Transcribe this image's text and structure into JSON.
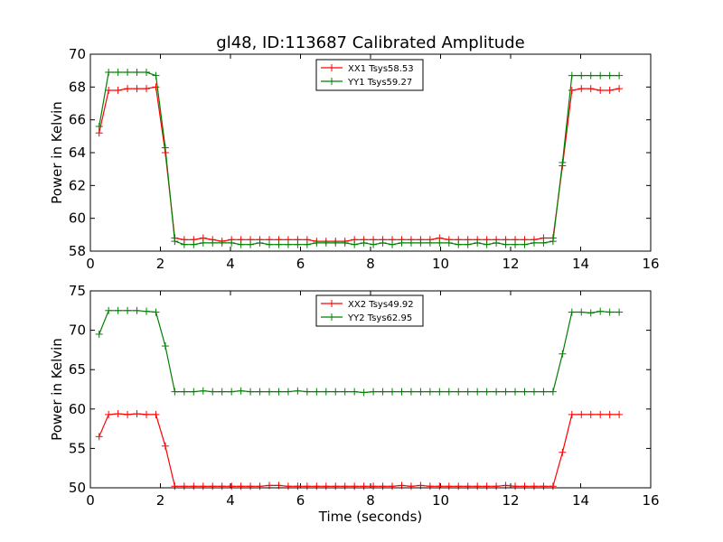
{
  "title": "gl48, ID:113687 Calibrated Amplitude",
  "chart_data": [
    {
      "type": "line",
      "ylabel": "Power in Kelvin",
      "xlabel": "",
      "xlim": [
        0,
        16
      ],
      "ylim": [
        58,
        70
      ],
      "xticks": [
        "0",
        "2",
        "4",
        "6",
        "8",
        "10",
        "12",
        "14",
        "16"
      ],
      "yticks": [
        "58",
        "60",
        "62",
        "64",
        "66",
        "68",
        "70"
      ],
      "legend_position": "top-center",
      "x": [
        0.25,
        0.52,
        0.79,
        1.06,
        1.33,
        1.6,
        1.87,
        2.14,
        2.41,
        2.68,
        2.95,
        3.22,
        3.49,
        3.76,
        4.03,
        4.3,
        4.57,
        4.84,
        5.11,
        5.38,
        5.65,
        5.92,
        6.19,
        6.46,
        6.73,
        7.0,
        7.27,
        7.54,
        7.81,
        8.08,
        8.35,
        8.62,
        8.89,
        9.16,
        9.43,
        9.7,
        9.97,
        10.24,
        10.51,
        10.78,
        11.05,
        11.32,
        11.59,
        11.86,
        12.13,
        12.4,
        12.67,
        12.94,
        13.21,
        13.48,
        13.75,
        14.02,
        14.29,
        14.56,
        14.83,
        15.1
      ],
      "series": [
        {
          "name": "XX1 Tsys58.53",
          "color": "#ff0000",
          "values": [
            65.2,
            67.8,
            67.8,
            67.9,
            67.9,
            67.9,
            68.0,
            64.0,
            58.8,
            58.7,
            58.7,
            58.8,
            58.7,
            58.6,
            58.7,
            58.7,
            58.7,
            58.7,
            58.7,
            58.7,
            58.7,
            58.7,
            58.7,
            58.6,
            58.6,
            58.6,
            58.6,
            58.7,
            58.7,
            58.7,
            58.7,
            58.7,
            58.7,
            58.7,
            58.7,
            58.7,
            58.8,
            58.7,
            58.7,
            58.7,
            58.7,
            58.7,
            58.7,
            58.7,
            58.7,
            58.7,
            58.7,
            58.8,
            58.8,
            63.2,
            67.8,
            67.9,
            67.9,
            67.8,
            67.8,
            67.9
          ]
        },
        {
          "name": "YY1 Tsys59.27",
          "color": "#008000",
          "values": [
            65.6,
            68.9,
            68.9,
            68.9,
            68.9,
            68.9,
            68.7,
            64.3,
            58.6,
            58.4,
            58.4,
            58.5,
            58.5,
            58.5,
            58.5,
            58.4,
            58.4,
            58.5,
            58.4,
            58.4,
            58.4,
            58.4,
            58.4,
            58.5,
            58.5,
            58.5,
            58.5,
            58.4,
            58.5,
            58.4,
            58.5,
            58.4,
            58.5,
            58.5,
            58.5,
            58.5,
            58.5,
            58.5,
            58.4,
            58.4,
            58.5,
            58.4,
            58.5,
            58.4,
            58.4,
            58.4,
            58.5,
            58.5,
            58.6,
            63.4,
            68.7,
            68.7,
            68.7,
            68.7,
            68.7,
            68.7
          ]
        }
      ]
    },
    {
      "type": "line",
      "ylabel": "Power in Kelvin",
      "xlabel": "Time (seconds)",
      "xlim": [
        0,
        16
      ],
      "ylim": [
        50,
        75
      ],
      "xticks": [
        "0",
        "2",
        "4",
        "6",
        "8",
        "10",
        "12",
        "14",
        "16"
      ],
      "yticks": [
        "50",
        "55",
        "60",
        "65",
        "70",
        "75"
      ],
      "legend_position": "top-center",
      "x": [
        0.25,
        0.52,
        0.79,
        1.06,
        1.33,
        1.6,
        1.87,
        2.14,
        2.41,
        2.68,
        2.95,
        3.22,
        3.49,
        3.76,
        4.03,
        4.3,
        4.57,
        4.84,
        5.11,
        5.38,
        5.65,
        5.92,
        6.19,
        6.46,
        6.73,
        7.0,
        7.27,
        7.54,
        7.81,
        8.08,
        8.35,
        8.62,
        8.89,
        9.16,
        9.43,
        9.7,
        9.97,
        10.24,
        10.51,
        10.78,
        11.05,
        11.32,
        11.59,
        11.86,
        12.13,
        12.4,
        12.67,
        12.94,
        13.21,
        13.48,
        13.75,
        14.02,
        14.29,
        14.56,
        14.83,
        15.1
      ],
      "series": [
        {
          "name": "XX2 Tsys49.92",
          "color": "#ff0000",
          "values": [
            56.5,
            59.3,
            59.4,
            59.3,
            59.4,
            59.3,
            59.3,
            55.3,
            50.2,
            50.2,
            50.2,
            50.2,
            50.2,
            50.2,
            50.2,
            50.2,
            50.2,
            50.2,
            50.3,
            50.3,
            50.2,
            50.2,
            50.2,
            50.2,
            50.2,
            50.2,
            50.2,
            50.2,
            50.2,
            50.2,
            50.2,
            50.2,
            50.3,
            50.2,
            50.3,
            50.2,
            50.2,
            50.2,
            50.2,
            50.2,
            50.2,
            50.2,
            50.2,
            50.3,
            50.2,
            50.2,
            50.2,
            50.2,
            50.2,
            54.5,
            59.3,
            59.3,
            59.3,
            59.3,
            59.3,
            59.3
          ]
        },
        {
          "name": "YY2 Tsys62.95",
          "color": "#008000",
          "values": [
            69.5,
            72.5,
            72.5,
            72.5,
            72.5,
            72.4,
            72.3,
            68.0,
            62.2,
            62.2,
            62.2,
            62.3,
            62.2,
            62.2,
            62.2,
            62.3,
            62.2,
            62.2,
            62.2,
            62.2,
            62.2,
            62.3,
            62.2,
            62.2,
            62.2,
            62.2,
            62.2,
            62.2,
            62.1,
            62.2,
            62.2,
            62.2,
            62.2,
            62.2,
            62.2,
            62.2,
            62.2,
            62.2,
            62.2,
            62.2,
            62.2,
            62.2,
            62.2,
            62.2,
            62.2,
            62.2,
            62.2,
            62.2,
            62.2,
            67.0,
            72.3,
            72.3,
            72.2,
            72.4,
            72.3,
            72.3
          ]
        }
      ]
    }
  ]
}
